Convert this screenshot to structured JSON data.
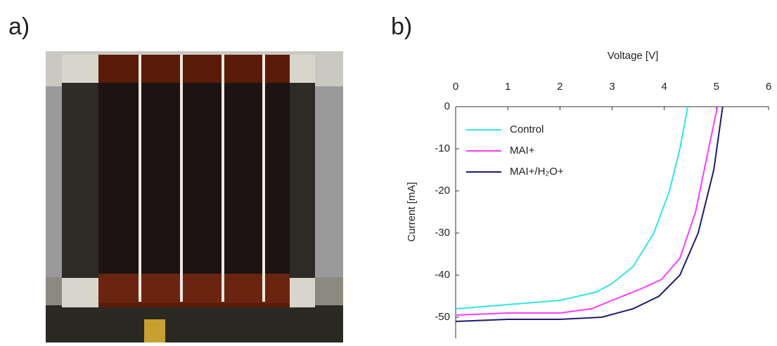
{
  "panel_labels": [
    "a)",
    "b)"
  ],
  "chart_data": {
    "type": "line",
    "xlabel": "Voltage [V]",
    "ylabel": "Current [mA]",
    "xlim": [
      0,
      6
    ],
    "xticks": [
      0,
      1,
      2,
      3,
      4,
      5,
      6
    ],
    "ylim": [
      -55,
      0
    ],
    "yticks": [
      0,
      -10,
      -20,
      -30,
      -40,
      -50
    ],
    "legend": "upper-left",
    "series": [
      {
        "name": "Control",
        "color": "#35e3e3",
        "x": [
          0,
          1,
          2,
          2.7,
          3,
          3.4,
          3.8,
          4.1,
          4.3,
          4.45
        ],
        "values": [
          -48,
          -47,
          -46,
          -44,
          -42,
          -38,
          -30,
          -20,
          -10,
          0
        ]
      },
      {
        "name": "MAI+",
        "color": "#ff3cff",
        "x": [
          0,
          1,
          2,
          2.6,
          3.2,
          3.6,
          3.95,
          4.3,
          4.6,
          4.85,
          5.02
        ],
        "values": [
          -49.5,
          -49,
          -49,
          -48,
          -45,
          -43,
          -41,
          -36,
          -25,
          -10,
          0
        ]
      },
      {
        "name": "MAI+/H₂O+",
        "color": "#1c1c70",
        "x": [
          0,
          1,
          2,
          2.8,
          3.4,
          3.9,
          4.3,
          4.65,
          4.95,
          5.12
        ],
        "values": [
          -51,
          -50.5,
          -50.5,
          -50,
          -48,
          -45,
          -40,
          -30,
          -15,
          0
        ]
      }
    ]
  }
}
